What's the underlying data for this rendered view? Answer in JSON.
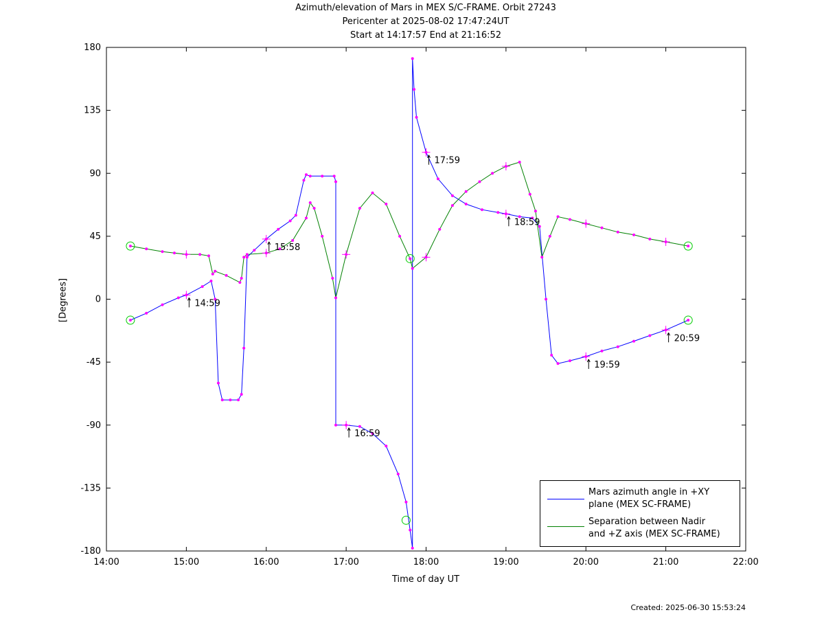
{
  "title": {
    "line1": "Azimuth/elevation of Mars in MEX S/C-FRAME.  Orbit 27243",
    "line2": "Pericenter at 2025-08-02 17:47:24UT",
    "line3": "Start at 14:17:57 End at 21:16:52"
  },
  "footer": {
    "created": "Created: 2025-06-30 15:53:24"
  },
  "chart_data": {
    "type": "line",
    "xlabel": "Time of day UT",
    "ylabel": "[Degrees]",
    "xlim": [
      14.0,
      22.0
    ],
    "ylim": [
      -180,
      180
    ],
    "x_ticks": [
      "14:00",
      "15:00",
      "16:00",
      "17:00",
      "18:00",
      "19:00",
      "20:00",
      "21:00",
      "22:00"
    ],
    "y_ticks": [
      "180",
      "135",
      "90",
      "45",
      "0",
      "-45",
      "-90",
      "-135",
      "-180"
    ],
    "grid": false,
    "legend_position": "bottom-right",
    "colors": {
      "azimuth": "#0000ff",
      "separation": "#008000",
      "markers": "#ff00ff",
      "endpoints": "#00cc00"
    },
    "series": [
      {
        "name": "Mars azimuth angle in +XY\nplane (MEX SC-FRAME)",
        "color": "#0000ff",
        "x": [
          14.3,
          14.5,
          14.7,
          14.9,
          15.0,
          15.2,
          15.31,
          15.36,
          15.4,
          15.45,
          15.55,
          15.65,
          15.69,
          15.72,
          15.76,
          15.85,
          16.0,
          16.15,
          16.3,
          16.37,
          16.47,
          16.5,
          16.55,
          16.7,
          16.85,
          16.87,
          16.87,
          17.0,
          17.17,
          17.33,
          17.5,
          17.65,
          17.75,
          17.8,
          17.83,
          17.83,
          17.85,
          17.88,
          18.0,
          18.15,
          18.33,
          18.5,
          18.7,
          18.9,
          19.0,
          19.17,
          19.33,
          19.42,
          19.5,
          19.57,
          19.65,
          19.8,
          20.0,
          20.2,
          20.4,
          20.6,
          20.8,
          21.0,
          21.28
        ],
        "y": [
          -15,
          -10,
          -4,
          1,
          3,
          9,
          13,
          0,
          -60,
          -72,
          -72,
          -72,
          -68,
          -35,
          30,
          35,
          43,
          50,
          56,
          60,
          85,
          89,
          88,
          88,
          88,
          84,
          -90,
          -90,
          -91,
          -96,
          -105,
          -125,
          -145,
          -165,
          -178,
          172,
          150,
          130,
          105,
          86,
          74,
          68,
          64,
          62,
          61,
          59,
          58,
          52,
          0,
          -40,
          -46,
          -44,
          -41,
          -37,
          -34,
          -30,
          -26,
          -22,
          -15
        ]
      },
      {
        "name": "Separation between Nadir\nand +Z axis (MEX SC-FRAME)",
        "color": "#008000",
        "x": [
          14.3,
          14.5,
          14.7,
          14.85,
          15.0,
          15.17,
          15.28,
          15.33,
          15.36,
          15.5,
          15.67,
          15.69,
          15.72,
          15.76,
          16.0,
          16.17,
          16.33,
          16.5,
          16.55,
          16.6,
          16.7,
          16.83,
          16.87,
          17.0,
          17.17,
          17.33,
          17.5,
          17.67,
          17.8,
          17.83,
          18.0,
          18.17,
          18.33,
          18.5,
          18.67,
          18.83,
          19.0,
          19.17,
          19.3,
          19.37,
          19.45,
          19.55,
          19.65,
          19.8,
          20.0,
          20.2,
          20.4,
          20.6,
          20.8,
          21.0,
          21.28
        ],
        "y": [
          38,
          36,
          34,
          33,
          32,
          32,
          31,
          18,
          20,
          17,
          12,
          15,
          30,
          32,
          33,
          36,
          42,
          58,
          69,
          65,
          45,
          15,
          1,
          32,
          65,
          76,
          68,
          45,
          29,
          22,
          30,
          50,
          67,
          77,
          84,
          90,
          95,
          98,
          75,
          63,
          30,
          45,
          59,
          57,
          54,
          51,
          48,
          46,
          43,
          41,
          38
        ]
      }
    ],
    "annotations": [
      {
        "label": "14:59",
        "x": 15.0,
        "y": 3
      },
      {
        "label": "15:58",
        "x": 16.0,
        "y": 43
      },
      {
        "label": "16:59",
        "x": 17.0,
        "y": -90
      },
      {
        "label": "17:59",
        "x": 18.0,
        "y": 105
      },
      {
        "label": "18:59",
        "x": 19.0,
        "y": 61
      },
      {
        "label": "19:59",
        "x": 20.0,
        "y": -41
      },
      {
        "label": "20:59",
        "x": 21.0,
        "y": -22
      }
    ]
  }
}
